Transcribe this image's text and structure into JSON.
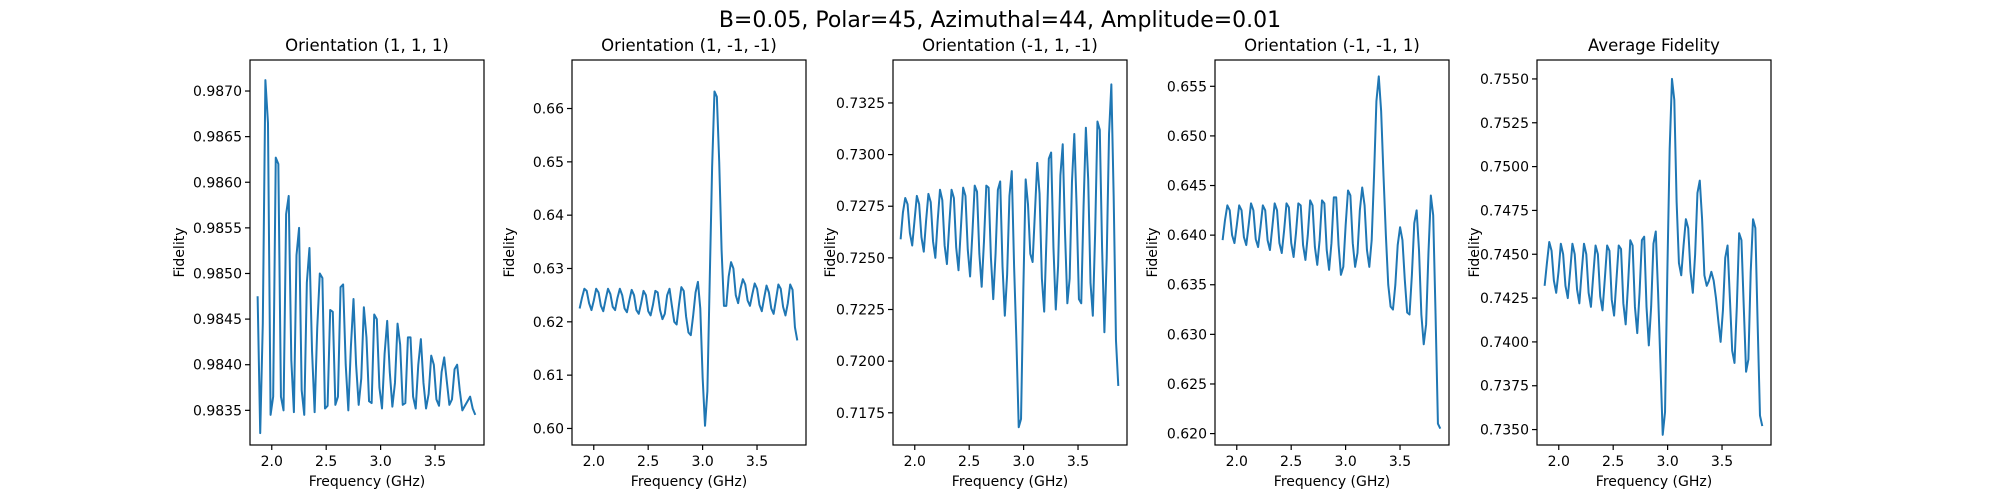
{
  "figure": {
    "suptitle": "B=0.05, Polar=45, Azimuthal=44, Amplitude=0.01"
  },
  "chart_data": [
    {
      "type": "line",
      "title": "Orientation (1, 1, 1)",
      "xlabel": "Frequency (GHz)",
      "ylabel": "Fidelity",
      "xlim": [
        1.8,
        3.95
      ],
      "ylim": [
        0.98312,
        0.98734
      ],
      "xticks": [
        "2.0",
        "2.5",
        "3.0",
        "3.5"
      ],
      "yticks": [
        "0.9835",
        "0.9840",
        "0.9845",
        "0.9850",
        "0.9855",
        "0.9860",
        "0.9865",
        "0.9870"
      ],
      "color": "#1f77b4",
      "x_range": [
        1.87,
        3.87
      ],
      "y": [
        0.98475,
        0.98325,
        0.98445,
        0.98712,
        0.98665,
        0.98345,
        0.98365,
        0.98627,
        0.9862,
        0.98365,
        0.9835,
        0.98565,
        0.98585,
        0.98405,
        0.98348,
        0.9852,
        0.9855,
        0.98372,
        0.98345,
        0.9849,
        0.98528,
        0.98415,
        0.98348,
        0.9844,
        0.985,
        0.98495,
        0.98352,
        0.98355,
        0.9846,
        0.98458,
        0.98356,
        0.98365,
        0.98485,
        0.98488,
        0.984,
        0.9835,
        0.9842,
        0.98472,
        0.984,
        0.98356,
        0.98385,
        0.98463,
        0.9843,
        0.9836,
        0.98358,
        0.98455,
        0.9845,
        0.98375,
        0.98352,
        0.98412,
        0.98448,
        0.98392,
        0.98354,
        0.9838,
        0.98445,
        0.98422,
        0.98356,
        0.98358,
        0.9843,
        0.9843,
        0.98365,
        0.98352,
        0.984,
        0.98428,
        0.9838,
        0.98352,
        0.98368,
        0.9841,
        0.984,
        0.98362,
        0.98355,
        0.98392,
        0.98408,
        0.98382,
        0.98356,
        0.98362,
        0.98395,
        0.984,
        0.98372,
        0.9835,
        0.98355,
        0.9836,
        0.98365,
        0.98352,
        0.98345
      ]
    },
    {
      "type": "line",
      "title": "Orientation (1, -1, -1)",
      "xlabel": "Frequency (GHz)",
      "ylabel": "Fidelity",
      "xlim": [
        1.8,
        3.95
      ],
      "ylim": [
        0.5969,
        0.6691
      ],
      "xticks": [
        "2.0",
        "2.5",
        "3.0",
        "3.5"
      ],
      "yticks": [
        "0.60",
        "0.61",
        "0.62",
        "0.63",
        "0.64",
        "0.65",
        "0.66"
      ],
      "color": "#1f77b4",
      "x_range": [
        1.87,
        3.87
      ],
      "y": [
        0.6225,
        0.6245,
        0.6262,
        0.6258,
        0.6235,
        0.6222,
        0.624,
        0.6262,
        0.6255,
        0.623,
        0.622,
        0.6242,
        0.6262,
        0.6252,
        0.6228,
        0.6222,
        0.6245,
        0.6262,
        0.625,
        0.6225,
        0.6218,
        0.624,
        0.626,
        0.625,
        0.6222,
        0.6215,
        0.6235,
        0.6258,
        0.625,
        0.622,
        0.6212,
        0.6232,
        0.6258,
        0.6255,
        0.6222,
        0.6205,
        0.6215,
        0.625,
        0.6262,
        0.623,
        0.62,
        0.6195,
        0.6232,
        0.6265,
        0.6258,
        0.621,
        0.618,
        0.6175,
        0.6212,
        0.6255,
        0.6275,
        0.6225,
        0.6095,
        0.6005,
        0.607,
        0.628,
        0.649,
        0.6632,
        0.6622,
        0.65,
        0.6335,
        0.623,
        0.623,
        0.6285,
        0.6312,
        0.63,
        0.625,
        0.6235,
        0.6262,
        0.628,
        0.627,
        0.624,
        0.623,
        0.6252,
        0.6272,
        0.6262,
        0.6232,
        0.622,
        0.6245,
        0.6268,
        0.6255,
        0.6225,
        0.6215,
        0.6242,
        0.627,
        0.6262,
        0.6228,
        0.6212,
        0.6235,
        0.627,
        0.626,
        0.619,
        0.6165
      ]
    },
    {
      "type": "line",
      "title": "Orientation (-1, 1, -1)",
      "xlabel": "Frequency (GHz)",
      "ylabel": "Fidelity",
      "xlim": [
        1.8,
        3.95
      ],
      "ylim": [
        0.71594,
        0.73458
      ],
      "xticks": [
        "2.0",
        "2.5",
        "3.0",
        "3.5"
      ],
      "yticks": [
        "0.7175",
        "0.7200",
        "0.7225",
        "0.7250",
        "0.7275",
        "0.7300",
        "0.7325"
      ],
      "color": "#1f77b4",
      "x_range": [
        1.87,
        3.87
      ],
      "y": [
        0.7259,
        0.7272,
        0.7279,
        0.7276,
        0.7262,
        0.7256,
        0.7268,
        0.728,
        0.7276,
        0.726,
        0.7253,
        0.7268,
        0.7281,
        0.7277,
        0.7258,
        0.725,
        0.7268,
        0.7283,
        0.7278,
        0.7256,
        0.7247,
        0.7266,
        0.7283,
        0.7279,
        0.7255,
        0.7244,
        0.7264,
        0.7284,
        0.728,
        0.7254,
        0.7241,
        0.7262,
        0.7285,
        0.7282,
        0.7252,
        0.7236,
        0.7258,
        0.7285,
        0.7284,
        0.725,
        0.723,
        0.7252,
        0.7283,
        0.7287,
        0.7246,
        0.7222,
        0.7242,
        0.728,
        0.7292,
        0.7246,
        0.721,
        0.7168,
        0.7172,
        0.7235,
        0.7288,
        0.7276,
        0.7252,
        0.7248,
        0.7272,
        0.7296,
        0.7281,
        0.724,
        0.7224,
        0.726,
        0.7298,
        0.7301,
        0.7255,
        0.7225,
        0.7246,
        0.729,
        0.7305,
        0.7262,
        0.7228,
        0.724,
        0.7287,
        0.731,
        0.7275,
        0.723,
        0.7228,
        0.7275,
        0.7313,
        0.7288,
        0.7238,
        0.7222,
        0.7262,
        0.7316,
        0.7312,
        0.7255,
        0.7214,
        0.725,
        0.731,
        0.7334,
        0.728,
        0.721,
        0.7188
      ]
    },
    {
      "type": "line",
      "title": "Orientation (-1, -1, 1)",
      "xlabel": "Frequency (GHz)",
      "ylabel": "Fidelity",
      "xlim": [
        1.8,
        3.95
      ],
      "ylim": [
        0.61885,
        0.65765
      ],
      "xticks": [
        "2.0",
        "2.5",
        "3.0",
        "3.5"
      ],
      "yticks": [
        "0.620",
        "0.625",
        "0.630",
        "0.635",
        "0.640",
        "0.645",
        "0.650",
        "0.655"
      ],
      "color": "#1f77b4",
      "x_range": [
        1.87,
        3.87
      ],
      "y": [
        0.6395,
        0.6415,
        0.643,
        0.6425,
        0.64,
        0.6392,
        0.641,
        0.643,
        0.6425,
        0.6398,
        0.639,
        0.641,
        0.6432,
        0.6425,
        0.6396,
        0.6388,
        0.6408,
        0.643,
        0.6425,
        0.6395,
        0.6385,
        0.6408,
        0.6432,
        0.6425,
        0.6392,
        0.6382,
        0.6405,
        0.6432,
        0.6428,
        0.6392,
        0.6378,
        0.6402,
        0.6432,
        0.643,
        0.639,
        0.6375,
        0.64,
        0.6435,
        0.643,
        0.6388,
        0.637,
        0.6395,
        0.6435,
        0.6432,
        0.6385,
        0.6365,
        0.6392,
        0.6438,
        0.6438,
        0.639,
        0.636,
        0.6368,
        0.641,
        0.6445,
        0.644,
        0.6392,
        0.6368,
        0.6382,
        0.6425,
        0.6448,
        0.643,
        0.6385,
        0.6368,
        0.6395,
        0.646,
        0.6535,
        0.656,
        0.6525,
        0.646,
        0.64,
        0.635,
        0.6328,
        0.6325,
        0.635,
        0.639,
        0.6408,
        0.6395,
        0.6355,
        0.6322,
        0.632,
        0.636,
        0.6412,
        0.6425,
        0.6385,
        0.632,
        0.629,
        0.631,
        0.6382,
        0.644,
        0.642,
        0.632,
        0.621,
        0.6205
      ]
    },
    {
      "type": "line",
      "title": "Average Fidelity",
      "xlabel": "Frequency (GHz)",
      "ylabel": "Fidelity",
      "xlim": [
        1.8,
        3.95
      ],
      "ylim": [
        0.73412,
        0.75608
      ],
      "xticks": [
        "2.0",
        "2.5",
        "3.0",
        "3.5"
      ],
      "yticks": [
        "0.7350",
        "0.7375",
        "0.7400",
        "0.7425",
        "0.7450",
        "0.7475",
        "0.7500",
        "0.7525",
        "0.7550"
      ],
      "color": "#1f77b4",
      "x_range": [
        1.87,
        3.87
      ],
      "y": [
        0.7432,
        0.7445,
        0.7457,
        0.7452,
        0.7435,
        0.7428,
        0.744,
        0.7456,
        0.745,
        0.7432,
        0.7425,
        0.744,
        0.7456,
        0.745,
        0.743,
        0.7422,
        0.744,
        0.7456,
        0.745,
        0.7428,
        0.742,
        0.7438,
        0.7455,
        0.745,
        0.7426,
        0.7418,
        0.7436,
        0.7455,
        0.7452,
        0.7424,
        0.7415,
        0.7435,
        0.7455,
        0.7453,
        0.7422,
        0.741,
        0.7432,
        0.7458,
        0.7455,
        0.742,
        0.7405,
        0.7428,
        0.7458,
        0.746,
        0.742,
        0.7398,
        0.742,
        0.7456,
        0.7463,
        0.7428,
        0.7388,
        0.7347,
        0.736,
        0.744,
        0.751,
        0.755,
        0.7538,
        0.748,
        0.7445,
        0.7438,
        0.7455,
        0.747,
        0.7465,
        0.744,
        0.7428,
        0.745,
        0.7485,
        0.7492,
        0.747,
        0.7438,
        0.7432,
        0.7435,
        0.744,
        0.7435,
        0.7425,
        0.7412,
        0.74,
        0.7418,
        0.7448,
        0.7455,
        0.7425,
        0.7395,
        0.7388,
        0.742,
        0.7462,
        0.7458,
        0.742,
        0.7383,
        0.739,
        0.744,
        0.747,
        0.7465,
        0.741,
        0.7358,
        0.7352
      ]
    }
  ]
}
